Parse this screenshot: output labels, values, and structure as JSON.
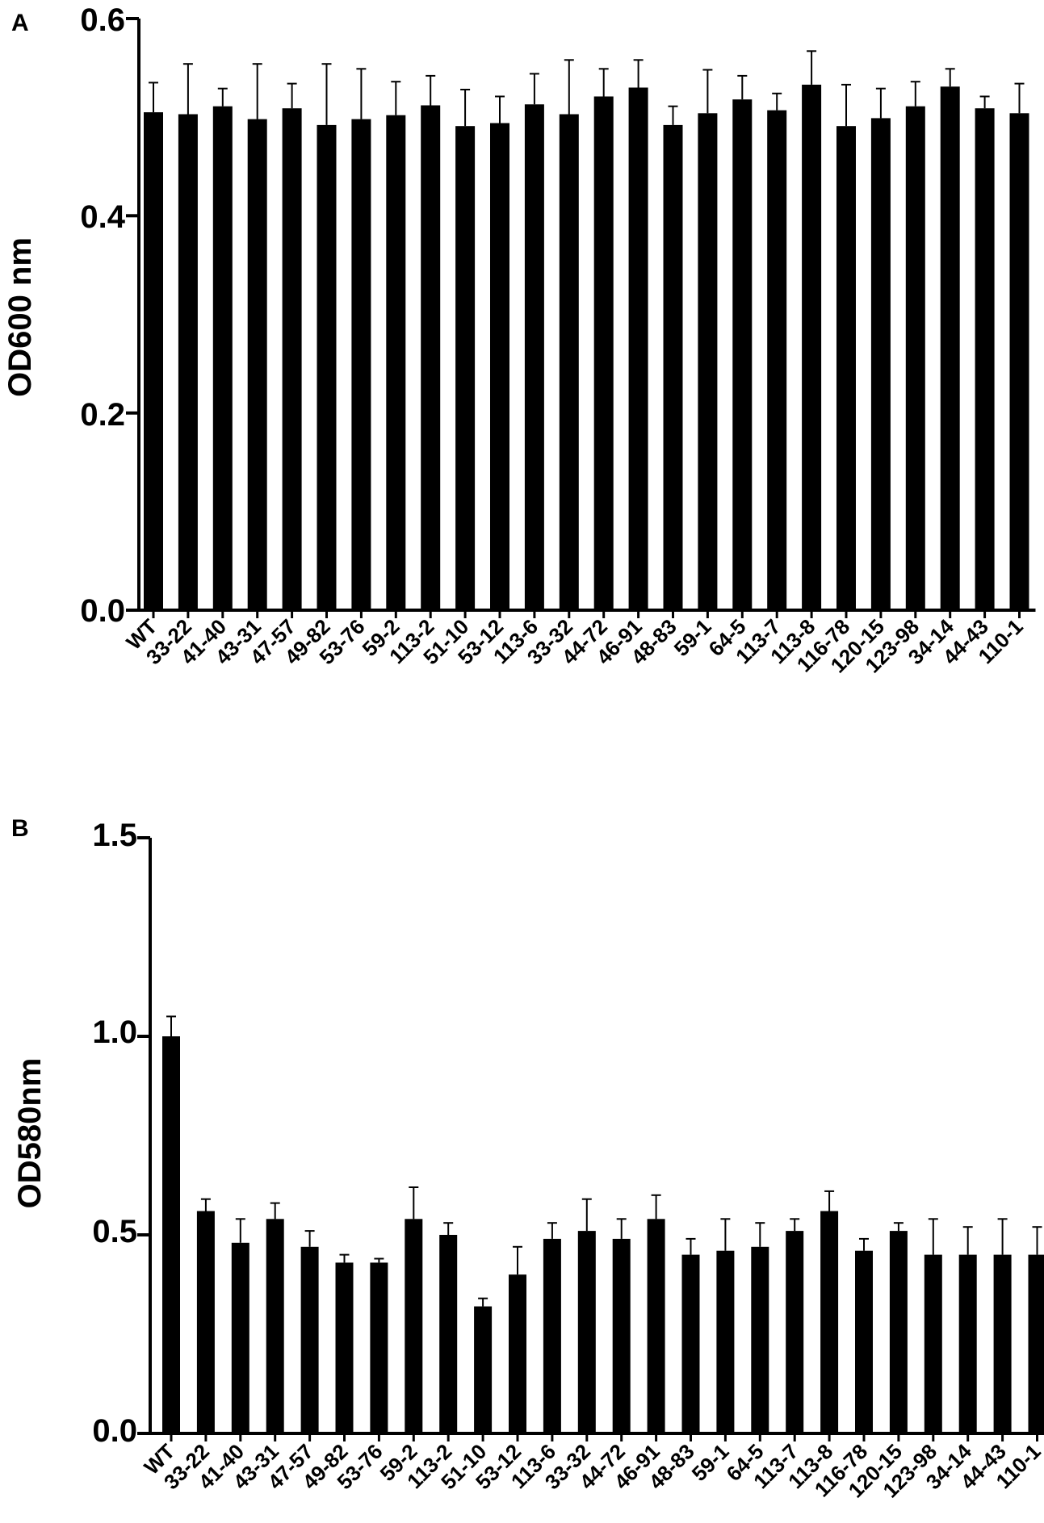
{
  "chart_data": [
    {
      "panel": "A",
      "type": "bar",
      "ylabel": "OD600 nm",
      "xlabel": "",
      "ylim": [
        0,
        0.6
      ],
      "yticks": [
        "0.0",
        "0.2",
        "0.4",
        "0.6"
      ],
      "grid": false,
      "legend": "none",
      "bar_color": "#000000",
      "categories": [
        "WT",
        "33-22",
        "41-40",
        "43-31",
        "47-57",
        "49-82",
        "53-76",
        "59-2",
        "113-2",
        "51-10",
        "53-12",
        "113-6",
        "33-32",
        "44-72",
        "46-91",
        "48-83",
        "59-1",
        "64-5",
        "113-7",
        "113-8",
        "116-78",
        "120-15",
        "123-98",
        "34-14",
        "44-43",
        "110-1"
      ],
      "values": [
        0.505,
        0.503,
        0.511,
        0.498,
        0.509,
        0.492,
        0.498,
        0.502,
        0.512,
        0.491,
        0.494,
        0.513,
        0.503,
        0.521,
        0.53,
        0.492,
        0.504,
        0.518,
        0.507,
        0.533,
        0.491,
        0.499,
        0.511,
        0.531,
        0.509,
        0.504
      ],
      "errors": [
        0.03,
        0.051,
        0.018,
        0.056,
        0.025,
        0.062,
        0.051,
        0.034,
        0.03,
        0.037,
        0.027,
        0.031,
        0.055,
        0.028,
        0.028,
        0.019,
        0.044,
        0.024,
        0.017,
        0.034,
        0.042,
        0.03,
        0.025,
        0.018,
        0.012,
        0.03
      ]
    },
    {
      "panel": "B",
      "type": "bar",
      "ylabel": "OD580nm",
      "xlabel": "",
      "ylim": [
        0,
        1.5
      ],
      "yticks": [
        "0.0",
        "0.5",
        "1.0",
        "1.5"
      ],
      "grid": false,
      "legend": "none",
      "bar_color": "#000000",
      "categories": [
        "WT",
        "33-22",
        "41-40",
        "43-31",
        "47-57",
        "49-82",
        "53-76",
        "59-2",
        "113-2",
        "51-10",
        "53-12",
        "113-6",
        "33-32",
        "44-72",
        "46-91",
        "48-83",
        "59-1",
        "64-5",
        "113-7",
        "113-8",
        "116-78",
        "120-15",
        "123-98",
        "34-14",
        "44-43",
        "110-1"
      ],
      "values": [
        1.0,
        0.56,
        0.48,
        0.54,
        0.47,
        0.43,
        0.43,
        0.54,
        0.5,
        0.32,
        0.4,
        0.49,
        0.51,
        0.49,
        0.54,
        0.45,
        0.46,
        0.47,
        0.51,
        0.56,
        0.46,
        0.51,
        0.45,
        0.45,
        0.45,
        0.45
      ],
      "errors": [
        0.05,
        0.03,
        0.06,
        0.04,
        0.04,
        0.02,
        0.01,
        0.08,
        0.03,
        0.02,
        0.07,
        0.04,
        0.08,
        0.05,
        0.06,
        0.04,
        0.08,
        0.06,
        0.03,
        0.05,
        0.03,
        0.02,
        0.09,
        0.07,
        0.09,
        0.07
      ]
    }
  ]
}
